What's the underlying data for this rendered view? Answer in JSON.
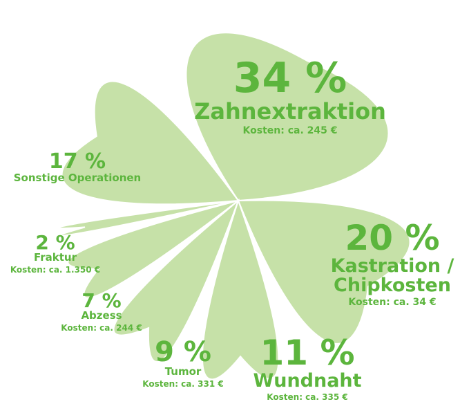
{
  "chart_data": {
    "type": "pie",
    "categories": [
      "Zahnextraktion",
      "Kastration / Chipkosten",
      "Wundnaht",
      "Tumor",
      "Abzess",
      "Fraktur",
      "Sonstige Operationen"
    ],
    "values": [
      34,
      20,
      11,
      9,
      7,
      2,
      17
    ],
    "value_labels": [
      "34 %",
      "20 %",
      "11 %",
      "9 %",
      "7 %",
      "2 %",
      "17 %"
    ],
    "cost_labels": [
      "Kosten: ca. 245 €",
      "Kosten: ca. 34 €",
      "Kosten: ca. 335 €",
      "Kosten: ca. 331 €",
      "Kosten: ca. 244 €",
      "Kosten: ca. 1.350 €",
      null
    ],
    "color": "#c6e1a8",
    "label_color": "#5cb53d"
  }
}
